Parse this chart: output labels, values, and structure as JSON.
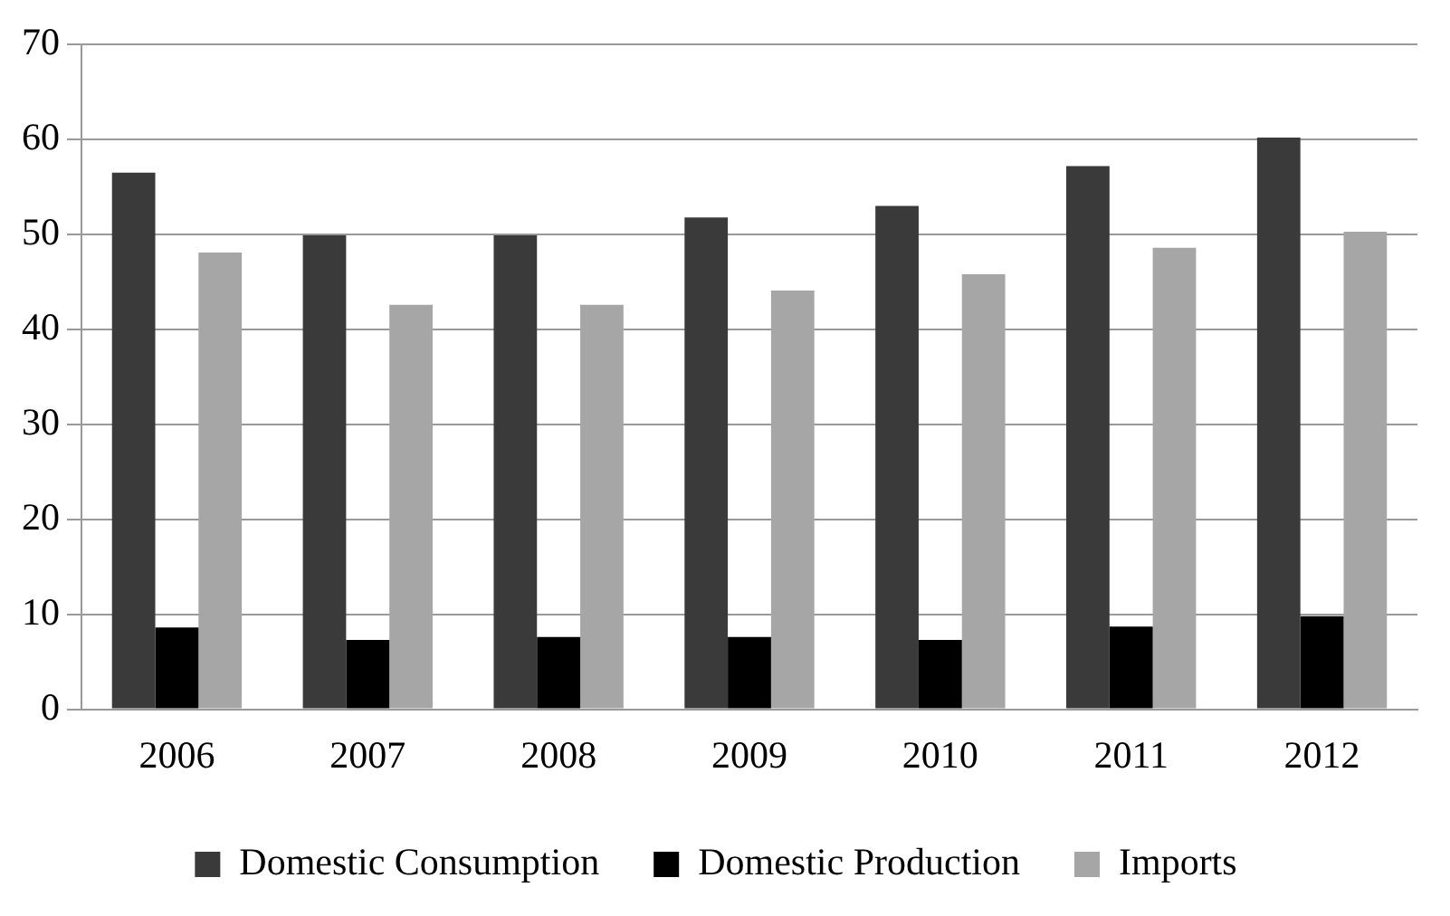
{
  "chart_data": {
    "type": "bar",
    "categories": [
      "2006",
      "2007",
      "2008",
      "2009",
      "2010",
      "2011",
      "2012"
    ],
    "series": [
      {
        "name": "Domestic Consumption",
        "color": "#3a3a3a",
        "values": [
          56.5,
          49.9,
          49.9,
          51.8,
          53.0,
          57.2,
          60.2
        ]
      },
      {
        "name": "Domestic Production",
        "color": "#000000",
        "values": [
          8.6,
          7.3,
          7.6,
          7.6,
          7.3,
          8.7,
          9.8
        ]
      },
      {
        "name": "Imports",
        "color": "#a6a6a6",
        "values": [
          48.1,
          42.6,
          42.6,
          44.1,
          45.8,
          48.6,
          50.3
        ]
      }
    ],
    "ylim": [
      0,
      70
    ],
    "yticks": [
      0,
      10,
      20,
      30,
      40,
      50,
      60,
      70
    ],
    "grid": "y",
    "legend": "bottom"
  }
}
